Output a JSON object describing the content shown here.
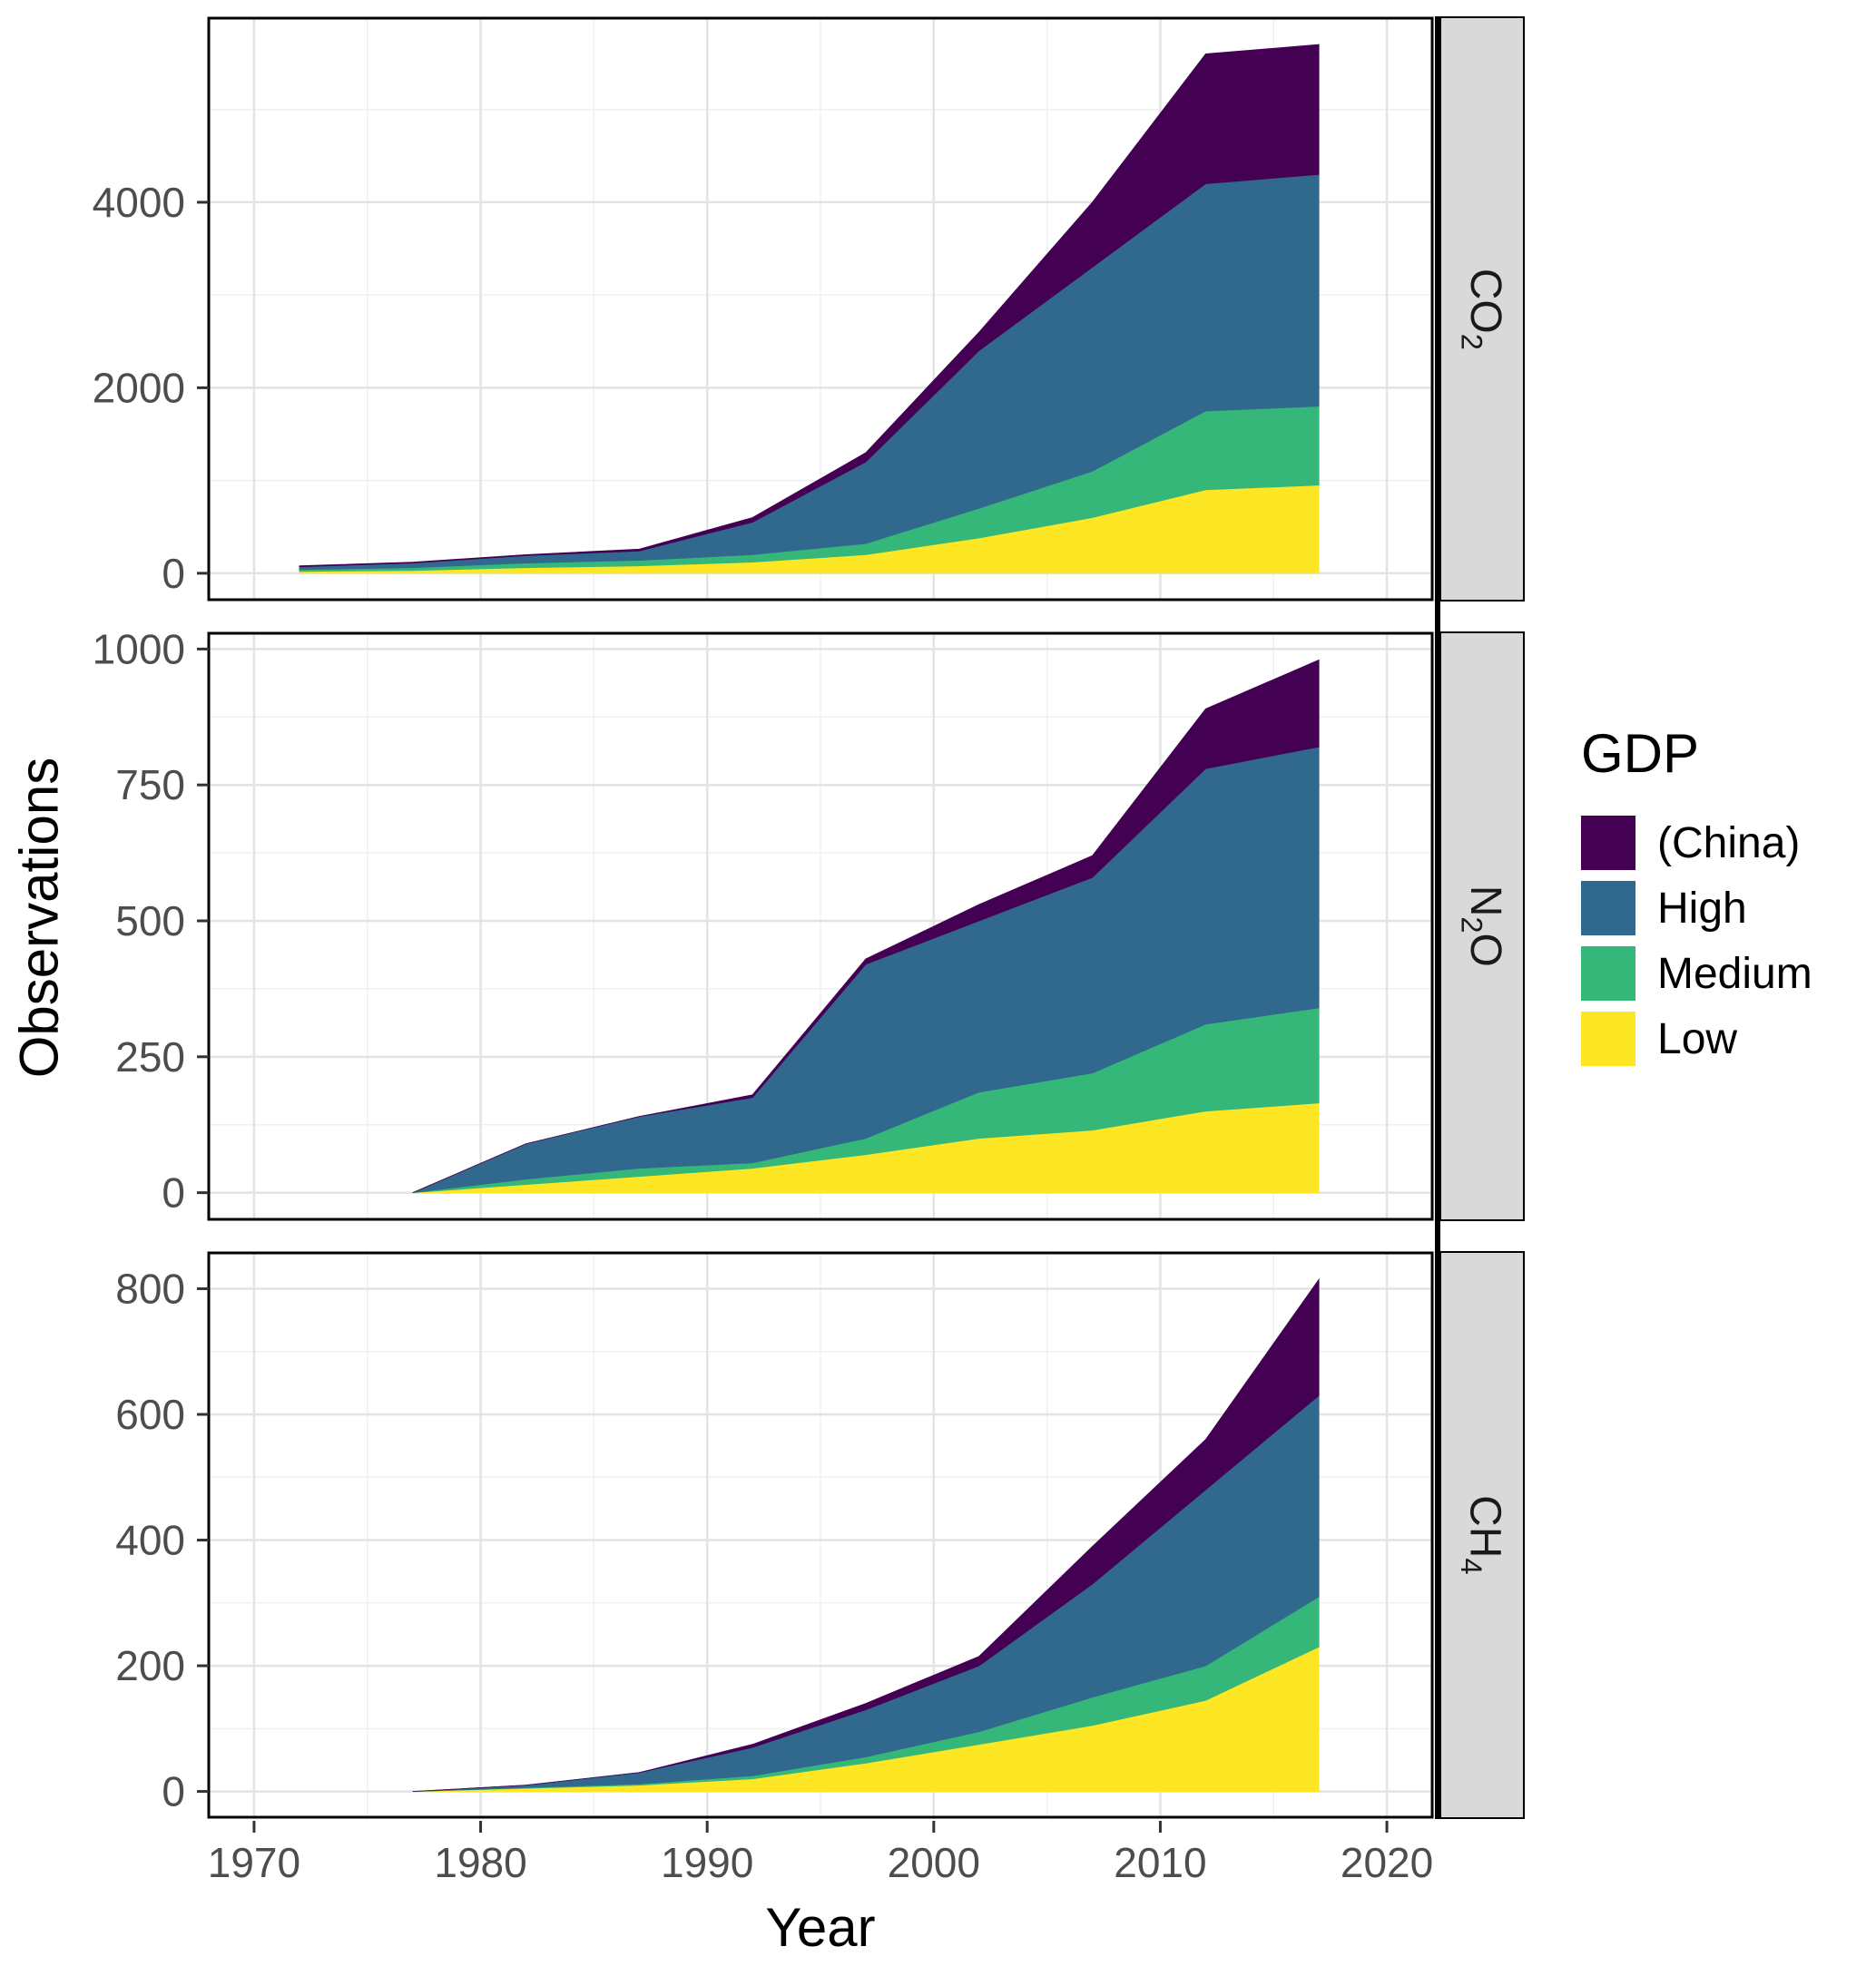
{
  "figure": {
    "xlabel": "Year",
    "ylabel": "Observations",
    "background": "#FFFFFF",
    "panel_border": "#000000",
    "grid_major": "#E3E3E3",
    "grid_minor": "#F0F0F0",
    "tick_color": "#333333",
    "tick_label_color": "#4D4D4D",
    "strip_fill": "#D9D9D9",
    "legend": {
      "title": "GDP",
      "items": [
        {
          "label": "(China)",
          "color": "#440154"
        },
        {
          "label": "High",
          "color": "#31688E"
        },
        {
          "label": "Medium",
          "color": "#35B779"
        },
        {
          "label": "Low",
          "color": "#FDE725"
        }
      ]
    }
  },
  "chart_data": [
    {
      "type": "area",
      "stacked": true,
      "stack_order": "bottom-to-top",
      "facet_name": "CO2",
      "facet_label_parts": [
        {
          "t": "CO"
        },
        {
          "t": "2",
          "sub": true
        }
      ],
      "x": [
        1972,
        1977,
        1982,
        1987,
        1992,
        1997,
        2002,
        2007,
        2012,
        2017
      ],
      "series": [
        {
          "name": "Low",
          "color": "#FDE725",
          "values": [
            20,
            30,
            60,
            80,
            120,
            200,
            380,
            600,
            900,
            950
          ]
        },
        {
          "name": "Medium",
          "color": "#35B779",
          "values": [
            20,
            30,
            50,
            60,
            80,
            120,
            320,
            500,
            850,
            850
          ]
        },
        {
          "name": "High",
          "color": "#31688E",
          "values": [
            30,
            50,
            80,
            100,
            350,
            880,
            1700,
            2200,
            2450,
            2500
          ]
        },
        {
          "name": "(China)",
          "color": "#440154",
          "values": [
            10,
            10,
            10,
            20,
            50,
            100,
            200,
            700,
            1400,
            1400
          ]
        }
      ],
      "xlim": [
        1968,
        2022
      ],
      "ylim": [
        -285,
        5985
      ],
      "xticks": [
        1970,
        1980,
        1990,
        2000,
        2010,
        2020
      ],
      "yticks": [
        0,
        2000,
        4000
      ]
    },
    {
      "type": "area",
      "stacked": true,
      "stack_order": "bottom-to-top",
      "facet_name": "N2O",
      "facet_label_parts": [
        {
          "t": "N"
        },
        {
          "t": "2",
          "sub": true
        },
        {
          "t": "O"
        }
      ],
      "x": [
        1977,
        1982,
        1987,
        1992,
        1997,
        2002,
        2007,
        2012,
        2017
      ],
      "series": [
        {
          "name": "Low",
          "color": "#FDE725",
          "values": [
            0,
            15,
            30,
            45,
            70,
            100,
            115,
            150,
            165
          ]
        },
        {
          "name": "Medium",
          "color": "#35B779",
          "values": [
            0,
            10,
            15,
            10,
            30,
            85,
            105,
            160,
            175
          ]
        },
        {
          "name": "High",
          "color": "#31688E",
          "values": [
            0,
            65,
            95,
            120,
            320,
            315,
            360,
            470,
            480
          ]
        },
        {
          "name": "(China)",
          "color": "#440154",
          "values": [
            0,
            0,
            0,
            5,
            10,
            30,
            40,
            110,
            160
          ]
        }
      ],
      "xlim": [
        1968,
        2022
      ],
      "ylim": [
        -49,
        1029
      ],
      "xticks": [
        1970,
        1980,
        1990,
        2000,
        2010,
        2020
      ],
      "yticks": [
        0,
        250,
        500,
        750,
        1000
      ]
    },
    {
      "type": "area",
      "stacked": true,
      "stack_order": "bottom-to-top",
      "facet_name": "CH4",
      "facet_label_parts": [
        {
          "t": "CH"
        },
        {
          "t": "4",
          "sub": true
        }
      ],
      "x": [
        1977,
        1982,
        1987,
        1992,
        1997,
        2002,
        2007,
        2012,
        2017
      ],
      "series": [
        {
          "name": "Low",
          "color": "#FDE725",
          "values": [
            0,
            5,
            10,
            20,
            45,
            75,
            105,
            145,
            230
          ]
        },
        {
          "name": "Medium",
          "color": "#35B779",
          "values": [
            0,
            1,
            2,
            5,
            10,
            20,
            45,
            55,
            80
          ]
        },
        {
          "name": "High",
          "color": "#31688E",
          "values": [
            0,
            4,
            18,
            45,
            75,
            105,
            180,
            280,
            320
          ]
        },
        {
          "name": "(China)",
          "color": "#440154",
          "values": [
            0,
            0,
            0,
            5,
            10,
            15,
            60,
            80,
            185
          ]
        }
      ],
      "xlim": [
        1968,
        2022
      ],
      "ylim": [
        -41,
        857
      ],
      "xticks": [
        1970,
        1980,
        1990,
        2000,
        2010,
        2020
      ],
      "yticks": [
        0,
        200,
        400,
        600,
        800
      ]
    }
  ]
}
